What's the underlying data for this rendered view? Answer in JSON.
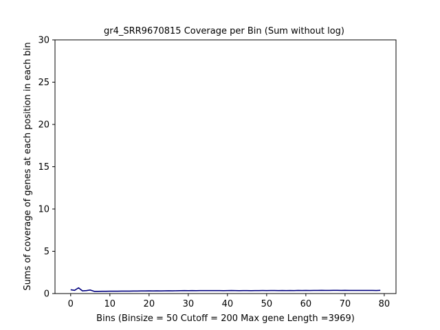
{
  "chart_data": {
    "type": "line",
    "title": "gr4_SRR9670815 Coverage per Bin (Sum without log)",
    "xlabel": "Bins  (Binsize = 50 Cutoff = 200 Max gene Length =3969)",
    "ylabel": "Sums of coverage of genes at each position in each bin",
    "xlim": [
      -4,
      83
    ],
    "ylim": [
      0,
      30
    ],
    "xticks": [
      0,
      10,
      20,
      30,
      40,
      50,
      60,
      70,
      80
    ],
    "yticks": [
      0,
      5,
      10,
      15,
      20,
      25,
      30
    ],
    "grid": false,
    "series": [
      {
        "color": "#00007f",
        "x": [
          0,
          1,
          2,
          3,
          4,
          5,
          6,
          7,
          8,
          9,
          10,
          11,
          12,
          13,
          14,
          15,
          16,
          17,
          18,
          19,
          20,
          21,
          22,
          23,
          24,
          25,
          26,
          27,
          28,
          29,
          30,
          31,
          32,
          33,
          34,
          35,
          36,
          37,
          38,
          39,
          40,
          41,
          42,
          43,
          44,
          45,
          46,
          47,
          48,
          49,
          50,
          51,
          52,
          53,
          54,
          55,
          56,
          57,
          58,
          59,
          60,
          61,
          62,
          63,
          64,
          65,
          66,
          67,
          68,
          69,
          70,
          71,
          72,
          73,
          74,
          75,
          76,
          77,
          78,
          79
        ],
        "y": [
          0.45,
          0.38,
          0.68,
          0.32,
          0.35,
          0.42,
          0.26,
          0.26,
          0.27,
          0.27,
          0.28,
          0.28,
          0.28,
          0.29,
          0.29,
          0.29,
          0.3,
          0.3,
          0.31,
          0.31,
          0.32,
          0.31,
          0.32,
          0.31,
          0.32,
          0.33,
          0.32,
          0.33,
          0.34,
          0.35,
          0.34,
          0.35,
          0.34,
          0.35,
          0.35,
          0.35,
          0.35,
          0.35,
          0.35,
          0.34,
          0.35,
          0.36,
          0.35,
          0.34,
          0.35,
          0.35,
          0.34,
          0.35,
          0.35,
          0.36,
          0.35,
          0.36,
          0.36,
          0.35,
          0.36,
          0.35,
          0.36,
          0.35,
          0.37,
          0.36,
          0.37,
          0.36,
          0.37,
          0.37,
          0.38,
          0.37,
          0.37,
          0.38,
          0.38,
          0.37,
          0.38,
          0.37,
          0.37,
          0.37,
          0.37,
          0.37,
          0.37,
          0.37,
          0.36,
          0.38
        ]
      }
    ]
  }
}
